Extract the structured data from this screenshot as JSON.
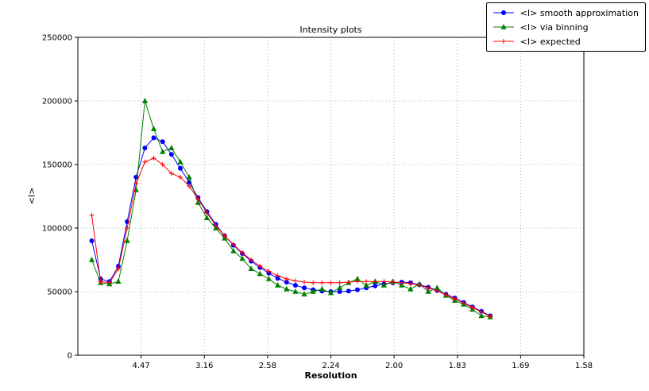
{
  "chart_data": {
    "type": "line",
    "title": "Intensity plots",
    "xlabel": "Resolution",
    "ylabel": "<I>",
    "grid": "dotted",
    "legend_position": "upper right outside plot",
    "x_axis": {
      "range": [
        0,
        0.4
      ],
      "ticks": [
        {
          "pos": 0.05,
          "label": "4.47"
        },
        {
          "pos": 0.1,
          "label": "3.16"
        },
        {
          "pos": 0.15,
          "label": "2.58"
        },
        {
          "pos": 0.2,
          "label": "2.24"
        },
        {
          "pos": 0.25,
          "label": "2.00"
        },
        {
          "pos": 0.3,
          "label": "1.83"
        },
        {
          "pos": 0.35,
          "label": "1.69"
        },
        {
          "pos": 0.4,
          "label": "1.58"
        }
      ]
    },
    "y_axis": {
      "range": [
        0,
        250000
      ],
      "ticks": [
        {
          "pos": 0,
          "label": "0"
        },
        {
          "pos": 50000,
          "label": "50000"
        },
        {
          "pos": 100000,
          "label": "100000"
        },
        {
          "pos": 150000,
          "label": "150000"
        },
        {
          "pos": 200000,
          "label": "200000"
        },
        {
          "pos": 250000,
          "label": "250000"
        }
      ]
    },
    "x": [
      0.011,
      0.018,
      0.025,
      0.032,
      0.039,
      0.046,
      0.053,
      0.06,
      0.067,
      0.074,
      0.081,
      0.088,
      0.095,
      0.102,
      0.109,
      0.116,
      0.123,
      0.13,
      0.137,
      0.144,
      0.151,
      0.158,
      0.165,
      0.172,
      0.179,
      0.186,
      0.193,
      0.2,
      0.207,
      0.214,
      0.221,
      0.228,
      0.235,
      0.242,
      0.249,
      0.256,
      0.263,
      0.27,
      0.277,
      0.284,
      0.291,
      0.298,
      0.305,
      0.312,
      0.319,
      0.326
    ],
    "series": [
      {
        "name": "<I> smooth approximation",
        "color": "#0000ff",
        "marker": "circle",
        "values": [
          90000,
          60000,
          58000,
          70000,
          105000,
          140000,
          163000,
          171000,
          168000,
          158000,
          147000,
          136000,
          124000,
          113000,
          103000,
          94000,
          86500,
          80000,
          74000,
          69000,
          64500,
          60500,
          57500,
          55000,
          53000,
          51500,
          50500,
          50000,
          50000,
          50500,
          51500,
          53000,
          54500,
          56000,
          57000,
          57500,
          57000,
          55500,
          53500,
          51000,
          48000,
          45000,
          41500,
          38000,
          34500,
          31000
        ]
      },
      {
        "name": "<I> via binning",
        "color": "#008000",
        "marker": "triangle",
        "values": [
          75000,
          57000,
          56000,
          58000,
          90000,
          130000,
          200000,
          178000,
          160000,
          163000,
          152000,
          140000,
          120000,
          108000,
          100000,
          92000,
          82000,
          76000,
          68000,
          64000,
          60000,
          55000,
          52000,
          50000,
          48000,
          50000,
          52000,
          49000,
          53000,
          57000,
          60000,
          55000,
          58000,
          55000,
          58000,
          55000,
          52000,
          56000,
          50000,
          53000,
          47000,
          43000,
          40000,
          36000,
          31000,
          30000
        ]
      },
      {
        "name": "<I> expected",
        "color": "#ff0000",
        "marker": "plus",
        "values": [
          110000,
          58000,
          57000,
          68000,
          100000,
          135000,
          152000,
          155000,
          150000,
          143000,
          140000,
          133000,
          123000,
          112000,
          102000,
          94000,
          87000,
          80500,
          75000,
          70000,
          66000,
          62500,
          60000,
          58500,
          57500,
          57000,
          57000,
          57000,
          57000,
          57500,
          58000,
          58000,
          58000,
          58000,
          57500,
          57000,
          56500,
          55000,
          53000,
          50500,
          47500,
          44500,
          41000,
          37500,
          34000,
          30500
        ]
      }
    ]
  }
}
